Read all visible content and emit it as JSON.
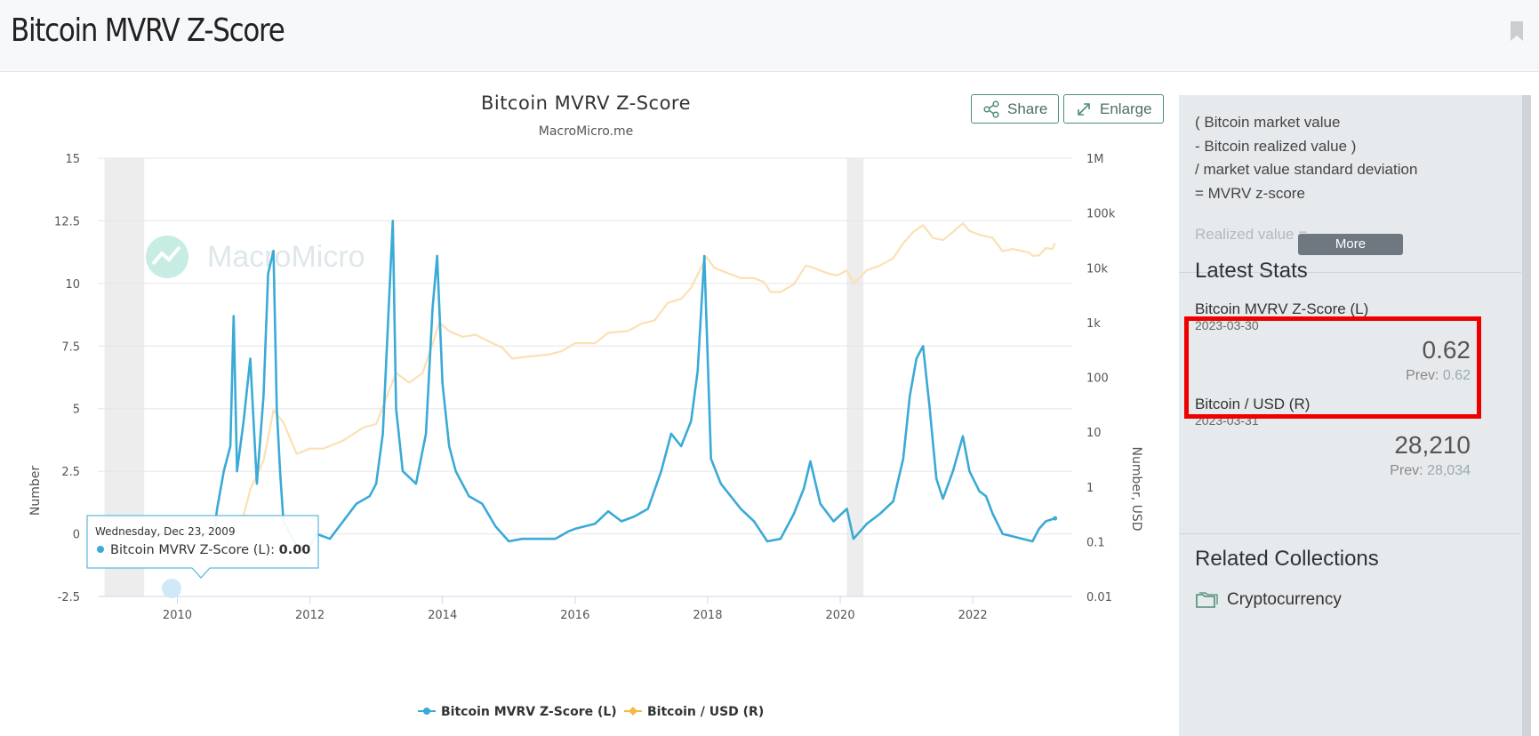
{
  "page": {
    "title": "Bitcoin MVRV Z-Score"
  },
  "toolbar": {
    "share_label": "Share",
    "enlarge_label": "Enlarge"
  },
  "sidebar": {
    "description": [
      "( Bitcoin market value",
      "- Bitcoin realized value )",
      "/ market value standard deviation",
      "= MVRV z-score"
    ],
    "description_faded": "Realized value = ",
    "more_label": "More",
    "latest_stats_title": "Latest Stats",
    "stats": [
      {
        "name": "Bitcoin MVRV Z-Score (L)",
        "date": "2023-03-30",
        "value": "0.62",
        "prev_label": "Prev:",
        "prev": "0.62"
      },
      {
        "name": "Bitcoin / USD (R)",
        "date": "2023-03-31",
        "value": "28,210",
        "prev_label": "Prev:",
        "prev": "28,034"
      }
    ],
    "related_title": "Related Collections",
    "collections": [
      {
        "label": "Cryptocurrency"
      }
    ]
  },
  "chart_data": {
    "type": "line",
    "title": "Bitcoin MVRV Z-Score",
    "subtitle": "MacroMicro.me",
    "watermark": "MacroMicro",
    "ylabel_left": "Number",
    "ylabel_right": "Number, USD",
    "x_range": [
      2008.8,
      2023.5
    ],
    "x_ticks": [
      "2010",
      "2012",
      "2014",
      "2016",
      "2018",
      "2020",
      "2022"
    ],
    "y_left_range": [
      -2.5,
      15
    ],
    "y_left_ticks": [
      "15",
      "12.5",
      "10",
      "7.5",
      "5",
      "2.5",
      "0",
      "-2.5"
    ],
    "y_right_scale": "log",
    "y_right_range": [
      0.01,
      1000000
    ],
    "y_right_ticks": [
      "1M",
      "100k",
      "10k",
      "1k",
      "100",
      "10",
      "1",
      "0.1",
      "0.01"
    ],
    "shaded_periods": [
      [
        2008.9,
        2009.5
      ],
      [
        2020.1,
        2020.35
      ]
    ],
    "tooltip": {
      "date": "Wednesday, Dec 23, 2009",
      "series": "Bitcoin MVRV Z-Score (L)",
      "value": "0.00"
    },
    "colors": {
      "zscore": "#3aaad6",
      "price": "#fbe0b3",
      "price_legend": "#f5b93d",
      "shade": "#ededed",
      "grid": "#e6e6e6"
    },
    "legend": [
      "Bitcoin MVRV Z-Score (L)",
      "Bitcoin / USD (R)"
    ],
    "series": [
      {
        "name": "Bitcoin MVRV Z-Score (L)",
        "axis": "left",
        "points": [
          [
            2009.0,
            0
          ],
          [
            2009.5,
            0
          ],
          [
            2010.0,
            0
          ],
          [
            2010.55,
            0
          ],
          [
            2010.6,
            1.0
          ],
          [
            2010.7,
            2.5
          ],
          [
            2010.8,
            3.5
          ],
          [
            2010.85,
            8.7
          ],
          [
            2010.9,
            2.5
          ],
          [
            2011.0,
            4.5
          ],
          [
            2011.1,
            7.0
          ],
          [
            2011.2,
            2.0
          ],
          [
            2011.3,
            5.5
          ],
          [
            2011.37,
            10.4
          ],
          [
            2011.45,
            11.3
          ],
          [
            2011.5,
            5.0
          ],
          [
            2011.55,
            2.5
          ],
          [
            2011.6,
            0.5
          ],
          [
            2011.8,
            -0.5
          ],
          [
            2011.95,
            -0.8
          ],
          [
            2012.1,
            0
          ],
          [
            2012.3,
            -0.2
          ],
          [
            2012.5,
            0.5
          ],
          [
            2012.7,
            1.2
          ],
          [
            2012.9,
            1.5
          ],
          [
            2013.0,
            2.0
          ],
          [
            2013.1,
            4.0
          ],
          [
            2013.25,
            12.5
          ],
          [
            2013.3,
            5.0
          ],
          [
            2013.4,
            2.5
          ],
          [
            2013.6,
            2.0
          ],
          [
            2013.75,
            4.0
          ],
          [
            2013.85,
            9.0
          ],
          [
            2013.92,
            11.1
          ],
          [
            2014.0,
            6.0
          ],
          [
            2014.1,
            3.5
          ],
          [
            2014.2,
            2.5
          ],
          [
            2014.4,
            1.5
          ],
          [
            2014.6,
            1.2
          ],
          [
            2014.8,
            0.3
          ],
          [
            2015.0,
            -0.3
          ],
          [
            2015.2,
            -0.2
          ],
          [
            2015.5,
            -0.2
          ],
          [
            2015.7,
            -0.2
          ],
          [
            2015.9,
            0.1
          ],
          [
            2016.0,
            0.2
          ],
          [
            2016.3,
            0.4
          ],
          [
            2016.5,
            0.9
          ],
          [
            2016.7,
            0.5
          ],
          [
            2016.9,
            0.7
          ],
          [
            2017.1,
            1.0
          ],
          [
            2017.3,
            2.5
          ],
          [
            2017.45,
            4.0
          ],
          [
            2017.6,
            3.5
          ],
          [
            2017.75,
            4.5
          ],
          [
            2017.85,
            6.5
          ],
          [
            2017.95,
            11.1
          ],
          [
            2018.05,
            3.0
          ],
          [
            2018.2,
            2.0
          ],
          [
            2018.35,
            1.5
          ],
          [
            2018.5,
            1.0
          ],
          [
            2018.7,
            0.5
          ],
          [
            2018.9,
            -0.3
          ],
          [
            2019.1,
            -0.2
          ],
          [
            2019.3,
            0.8
          ],
          [
            2019.45,
            1.8
          ],
          [
            2019.55,
            2.9
          ],
          [
            2019.7,
            1.2
          ],
          [
            2019.9,
            0.5
          ],
          [
            2020.1,
            1.0
          ],
          [
            2020.2,
            -0.2
          ],
          [
            2020.4,
            0.4
          ],
          [
            2020.6,
            0.8
          ],
          [
            2020.8,
            1.3
          ],
          [
            2020.95,
            3.0
          ],
          [
            2021.05,
            5.5
          ],
          [
            2021.15,
            7.0
          ],
          [
            2021.25,
            7.5
          ],
          [
            2021.35,
            5.0
          ],
          [
            2021.45,
            2.2
          ],
          [
            2021.55,
            1.4
          ],
          [
            2021.7,
            2.5
          ],
          [
            2021.85,
            3.9
          ],
          [
            2021.95,
            2.5
          ],
          [
            2022.1,
            1.7
          ],
          [
            2022.2,
            1.5
          ],
          [
            2022.3,
            0.8
          ],
          [
            2022.45,
            0.0
          ],
          [
            2022.6,
            -0.1
          ],
          [
            2022.75,
            -0.2
          ],
          [
            2022.9,
            -0.3
          ],
          [
            2023.0,
            0.2
          ],
          [
            2023.1,
            0.5
          ],
          [
            2023.24,
            0.62
          ]
        ]
      },
      {
        "name": "Bitcoin / USD (R)",
        "axis": "right",
        "points": [
          [
            2010.55,
            0.06
          ],
          [
            2010.7,
            0.06
          ],
          [
            2010.85,
            0.25
          ],
          [
            2011.0,
            0.3
          ],
          [
            2011.1,
            0.9
          ],
          [
            2011.3,
            3.0
          ],
          [
            2011.45,
            25
          ],
          [
            2011.6,
            15
          ],
          [
            2011.8,
            4
          ],
          [
            2012.0,
            5
          ],
          [
            2012.2,
            5
          ],
          [
            2012.5,
            7
          ],
          [
            2012.8,
            12
          ],
          [
            2013.0,
            14
          ],
          [
            2013.2,
            60
          ],
          [
            2013.3,
            120
          ],
          [
            2013.5,
            80
          ],
          [
            2013.7,
            120
          ],
          [
            2013.85,
            400
          ],
          [
            2013.95,
            1000
          ],
          [
            2014.1,
            700
          ],
          [
            2014.3,
            550
          ],
          [
            2014.5,
            600
          ],
          [
            2014.7,
            450
          ],
          [
            2014.9,
            350
          ],
          [
            2015.05,
            220
          ],
          [
            2015.3,
            240
          ],
          [
            2015.6,
            260
          ],
          [
            2015.8,
            300
          ],
          [
            2016.0,
            420
          ],
          [
            2016.3,
            420
          ],
          [
            2016.5,
            650
          ],
          [
            2016.8,
            700
          ],
          [
            2017.0,
            950
          ],
          [
            2017.2,
            1100
          ],
          [
            2017.4,
            2300
          ],
          [
            2017.6,
            2700
          ],
          [
            2017.75,
            4300
          ],
          [
            2017.9,
            10000
          ],
          [
            2017.98,
            16000
          ],
          [
            2018.1,
            10000
          ],
          [
            2018.3,
            8000
          ],
          [
            2018.5,
            6500
          ],
          [
            2018.7,
            6500
          ],
          [
            2018.85,
            5500
          ],
          [
            2018.95,
            3600
          ],
          [
            2019.1,
            3600
          ],
          [
            2019.3,
            5000
          ],
          [
            2019.48,
            11000
          ],
          [
            2019.6,
            10000
          ],
          [
            2019.8,
            8000
          ],
          [
            2019.95,
            7200
          ],
          [
            2020.1,
            9000
          ],
          [
            2020.2,
            5200
          ],
          [
            2020.4,
            9000
          ],
          [
            2020.6,
            11000
          ],
          [
            2020.8,
            15000
          ],
          [
            2020.95,
            28000
          ],
          [
            2021.1,
            45000
          ],
          [
            2021.25,
            60000
          ],
          [
            2021.4,
            35000
          ],
          [
            2021.55,
            32000
          ],
          [
            2021.7,
            45000
          ],
          [
            2021.85,
            65000
          ],
          [
            2021.95,
            47000
          ],
          [
            2022.1,
            40000
          ],
          [
            2022.3,
            35000
          ],
          [
            2022.45,
            20000
          ],
          [
            2022.6,
            22000
          ],
          [
            2022.85,
            19000
          ],
          [
            2022.9,
            16500
          ],
          [
            2023.0,
            16800
          ],
          [
            2023.1,
            23000
          ],
          [
            2023.2,
            22000
          ],
          [
            2023.24,
            28210
          ]
        ]
      }
    ]
  }
}
